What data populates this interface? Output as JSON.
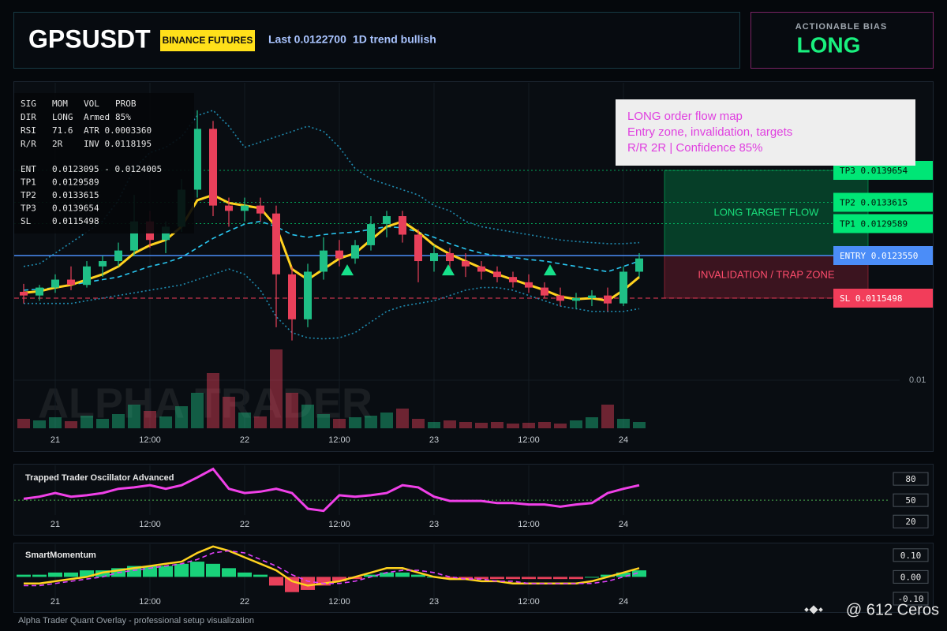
{
  "header": {
    "symbol": "GPSUSDT",
    "exchange": "BINANCE FUTURES",
    "last": "Last 0.0122700",
    "trend": "1D trend bullish"
  },
  "bias": {
    "label": "ACTIONABLE BIAS",
    "value": "LONG"
  },
  "info_panel": {
    "rows": [
      [
        "SIG",
        "MOM",
        "VOL",
        "PROB"
      ],
      [
        "DIR",
        "LONG",
        "Armed",
        "85%"
      ],
      [
        "RSI",
        "71.6",
        "ATR 0.0003360"
      ],
      [
        "R/R",
        "2R",
        "INV 0.0118195"
      ],
      [
        "ENT",
        "0.0123095 - 0.0124005"
      ],
      [
        "TP1",
        "0.0129589"
      ],
      [
        "TP2",
        "0.0133615"
      ],
      [
        "TP3",
        "0.0139654"
      ],
      [
        "SL",
        "0.0115498"
      ]
    ]
  },
  "annotation": {
    "lines": [
      "LONG order flow map",
      "Entry zone, invalidation, targets",
      "R/R 2R | Confidence 85%"
    ]
  },
  "watermark": "ALPHA TRADER",
  "footer": "Alpha Trader Quant Overlay - professional setup visualization",
  "credit": "@ 612 Ceros",
  "chart_data": [
    {
      "type": "candlestick",
      "x": [
        -4,
        -2,
        0,
        2,
        4,
        6,
        8,
        10,
        12,
        14,
        16,
        18,
        20,
        22,
        24,
        26,
        28,
        30,
        32,
        34,
        36,
        38,
        40,
        42,
        44,
        46,
        48,
        50,
        52,
        54,
        56,
        58,
        60,
        62,
        64,
        66,
        68,
        70,
        72,
        74
      ],
      "open": [
        0.01167,
        0.0116,
        0.01175,
        0.0119,
        0.0118,
        0.01215,
        0.01225,
        0.01245,
        0.013,
        0.01265,
        0.0129,
        0.0136,
        0.01475,
        0.0133,
        0.0132,
        0.0133,
        0.01315,
        0.012,
        0.01115,
        0.01205,
        0.01245,
        0.0123,
        0.01255,
        0.01295,
        0.0131,
        0.01275,
        0.01225,
        0.0124,
        0.01225,
        0.01215,
        0.01205,
        0.01195,
        0.01185,
        0.01175,
        0.0116,
        0.0115,
        0.01155,
        0.0116,
        0.01145,
        0.01205
      ],
      "high": [
        0.01182,
        0.0118,
        0.012,
        0.01215,
        0.01225,
        0.01235,
        0.0126,
        0.0135,
        0.0132,
        0.013,
        0.0138,
        0.0151,
        0.0149,
        0.01345,
        0.01345,
        0.01345,
        0.0133,
        0.01215,
        0.0122,
        0.0127,
        0.01265,
        0.01265,
        0.0131,
        0.0132,
        0.0132,
        0.01285,
        0.01255,
        0.0125,
        0.0124,
        0.01225,
        0.01215,
        0.01205,
        0.012,
        0.01185,
        0.01175,
        0.01165,
        0.0117,
        0.01175,
        0.01215,
        0.0124
      ],
      "low": [
        0.01145,
        0.0115,
        0.01165,
        0.0117,
        0.01175,
        0.01195,
        0.01215,
        0.01235,
        0.0125,
        0.0124,
        0.0128,
        0.01345,
        0.0131,
        0.0129,
        0.013,
        0.013,
        0.011,
        0.01075,
        0.011,
        0.0119,
        0.01215,
        0.0122,
        0.01245,
        0.0127,
        0.0126,
        0.01185,
        0.01205,
        0.0121,
        0.01195,
        0.0119,
        0.01185,
        0.01175,
        0.01165,
        0.01155,
        0.0114,
        0.01135,
        0.0114,
        0.0113,
        0.0114,
        0.01195
      ],
      "close": [
        0.0116,
        0.01175,
        0.0119,
        0.0118,
        0.01215,
        0.01225,
        0.01245,
        0.013,
        0.01265,
        0.0129,
        0.0136,
        0.01475,
        0.0133,
        0.0132,
        0.0133,
        0.01315,
        0.012,
        0.01115,
        0.01205,
        0.01245,
        0.0123,
        0.01255,
        0.01295,
        0.0131,
        0.01275,
        0.01225,
        0.0124,
        0.01225,
        0.01215,
        0.01205,
        0.01195,
        0.01185,
        0.01175,
        0.0116,
        0.0115,
        0.01155,
        0.0116,
        0.01145,
        0.01205,
        0.0123
      ],
      "volume": [
        12,
        10,
        14,
        9,
        16,
        12,
        18,
        30,
        22,
        15,
        28,
        45,
        70,
        40,
        20,
        15,
        100,
        45,
        30,
        18,
        12,
        14,
        16,
        20,
        25,
        12,
        8,
        10,
        8,
        7,
        8,
        6,
        7,
        8,
        6,
        10,
        14,
        30,
        12,
        8
      ],
      "up_color": "#1fbf86",
      "down_color": "#e8405a",
      "overlays": [
        {
          "color": "#1f8bb0",
          "dash": "dotted",
          "values": [
            0.01215,
            0.0122,
            0.0124,
            0.0126,
            0.0128,
            0.013,
            0.0134,
            0.014,
            0.0143,
            0.0144,
            0.0146,
            0.015,
            0.0151,
            0.0148,
            0.0144,
            0.0145,
            0.0146,
            0.0147,
            0.0148,
            0.0147,
            0.0144,
            0.014,
            0.0138,
            0.0137,
            0.0136,
            0.0135,
            0.0133,
            0.0132,
            0.013,
            0.0129,
            0.01285,
            0.0128,
            0.01275,
            0.0127,
            0.01265,
            0.01262,
            0.0126,
            0.01258,
            0.01258,
            0.0126
          ]
        },
        {
          "color": "#1f8bb0",
          "dash": "dotted",
          "values": [
            0.01145,
            0.01145,
            0.01145,
            0.01145,
            0.0115,
            0.01155,
            0.0116,
            0.01165,
            0.0117,
            0.01175,
            0.0118,
            0.0119,
            0.012,
            0.0121,
            0.012,
            0.0117,
            0.0112,
            0.0109,
            0.0108,
            0.01078,
            0.0108,
            0.0109,
            0.0111,
            0.0113,
            0.0114,
            0.01145,
            0.0115,
            0.0116,
            0.0117,
            0.01175,
            0.01175,
            0.0117,
            0.0116,
            0.0115,
            0.0114,
            0.01135,
            0.0113,
            0.0113,
            0.0113,
            0.01135
          ]
        },
        {
          "color": "#29c6f0",
          "dash": "dashed",
          "values": [
            0.0117,
            0.01172,
            0.01175,
            0.0118,
            0.01185,
            0.0119,
            0.01195,
            0.01205,
            0.01215,
            0.01222,
            0.01232,
            0.0125,
            0.01268,
            0.01282,
            0.01295,
            0.013,
            0.0129,
            0.01275,
            0.0127,
            0.01275,
            0.01278,
            0.0128,
            0.01285,
            0.0129,
            0.01288,
            0.0128,
            0.0127,
            0.01258,
            0.01248,
            0.0124,
            0.01235,
            0.01232,
            0.01228,
            0.01225,
            0.0122,
            0.01215,
            0.0121,
            0.01205,
            0.01215,
            0.01225
          ]
        },
        {
          "color": "#ffd21f",
          "dash": "solid",
          "values": [
            0.01165,
            0.01168,
            0.01175,
            0.0118,
            0.0119,
            0.012,
            0.01215,
            0.0124,
            0.01255,
            0.01265,
            0.0129,
            0.0134,
            0.0135,
            0.01335,
            0.0133,
            0.01325,
            0.0129,
            0.0121,
            0.0119,
            0.0121,
            0.0123,
            0.0124,
            0.01265,
            0.0129,
            0.013,
            0.0128,
            0.01255,
            0.01238,
            0.01225,
            0.01212,
            0.012,
            0.0119,
            0.0118,
            0.0117,
            0.01158,
            0.01153,
            0.01155,
            0.0115,
            0.0117,
            0.01195
          ]
        }
      ],
      "signals": {
        "color": "#16e08a",
        "x": [
          37,
          49.8,
          62.7
        ],
        "y": [
          0.01207,
          0.01207,
          0.01207
        ]
      },
      "levels": [
        {
          "label": "TP3 0.0139654",
          "value": 0.0139654,
          "color": "#00e676",
          "text_color": "#04140a",
          "style": "dotted"
        },
        {
          "label": "TP2 0.0133615",
          "value": 0.0133615,
          "color": "#00e676",
          "text_color": "#04140a",
          "style": "dotted"
        },
        {
          "label": "TP1 0.0129589",
          "value": 0.0129589,
          "color": "#00e676",
          "text_color": "#04140a",
          "style": "dotted"
        },
        {
          "label": "ENTRY 0.0123550",
          "value": 0.012355,
          "color": "#4b8df8",
          "text_color": "#ffffff",
          "style": "solid"
        },
        {
          "label": "SL 0.0115498",
          "value": 0.0115498,
          "color": "#f23d5a",
          "text_color": "#ffffff",
          "style": "dashed"
        }
      ],
      "zones": [
        {
          "label": "LONG TARGET FLOW",
          "from": 0.012355,
          "to": 0.0139654,
          "color": "#00c060",
          "text_color": "#19e07c"
        },
        {
          "label": "INVALIDATION / TRAP ZONE",
          "from": 0.0115498,
          "to": 0.012355,
          "color": "#c0283f",
          "text_color": "#ff4d6d"
        }
      ],
      "xlim": [
        -5.2,
        107
      ],
      "xticks": [
        {
          "value": 0,
          "label": "21"
        },
        {
          "value": 12,
          "label": "12:00"
        },
        {
          "value": 24,
          "label": "22"
        },
        {
          "value": 36,
          "label": "12:00"
        },
        {
          "value": 48,
          "label": "23"
        },
        {
          "value": 60,
          "label": "12:00"
        },
        {
          "value": 72,
          "label": "24"
        }
      ],
      "ylim": [
        0.00909,
        0.01562
      ],
      "yticks": [
        0.01
      ],
      "grid": true
    },
    {
      "type": "line",
      "title": "Trapped Trader Oscillator Advanced",
      "x": [
        -4,
        -2,
        0,
        2,
        4,
        6,
        8,
        10,
        12,
        14,
        16,
        18,
        20,
        22,
        24,
        26,
        28,
        30,
        32,
        34,
        36,
        38,
        40,
        42,
        44,
        46,
        48,
        50,
        52,
        54,
        56,
        58,
        60,
        62,
        64,
        66,
        68,
        70,
        72,
        74
      ],
      "series": [
        {
          "color": "#f040e8",
          "dash": "solid",
          "values": [
            52,
            55,
            60,
            55,
            57,
            60,
            66,
            68,
            71,
            66,
            71,
            82,
            94,
            66,
            60,
            62,
            66,
            60,
            38,
            35,
            57,
            55,
            57,
            60,
            71,
            68,
            55,
            49,
            49,
            49,
            46,
            46,
            44,
            44,
            41,
            44,
            46,
            60,
            66,
            71
          ]
        }
      ],
      "guides": [
        {
          "value": 50,
          "color": "#4caf50"
        }
      ],
      "xlim": [
        -5.2,
        107
      ],
      "xticks": [
        {
          "value": 0,
          "label": "21"
        },
        {
          "value": 12,
          "label": "12:00"
        },
        {
          "value": 24,
          "label": "22"
        },
        {
          "value": 36,
          "label": "12:00"
        },
        {
          "value": 48,
          "label": "23"
        },
        {
          "value": 60,
          "label": "12:00"
        },
        {
          "value": 72,
          "label": "24"
        }
      ],
      "ylim": [
        18,
        99
      ],
      "yticks": [
        20,
        50,
        80
      ]
    },
    {
      "type": "combo",
      "title": "SmartMomentum",
      "x": [
        -4,
        -2,
        0,
        2,
        4,
        6,
        8,
        10,
        12,
        14,
        16,
        18,
        20,
        22,
        24,
        26,
        28,
        30,
        32,
        34,
        36,
        38,
        40,
        42,
        44,
        46,
        48,
        50,
        52,
        54,
        56,
        58,
        60,
        62,
        64,
        66,
        68,
        70,
        72,
        74
      ],
      "series": [
        {
          "kind": "bar",
          "color": "#19d27a",
          "negative_color": "#e8405a",
          "values": [
            0.01,
            0.01,
            0.02,
            0.02,
            0.03,
            0.03,
            0.04,
            0.05,
            0.05,
            0.05,
            0.06,
            0.07,
            0.06,
            0.04,
            0.02,
            0.01,
            -0.04,
            -0.07,
            -0.06,
            -0.04,
            -0.02,
            -0.01,
            0.01,
            0.02,
            0.02,
            0.01,
            0,
            -0.01,
            -0.01,
            -0.01,
            -0.01,
            -0.01,
            -0.01,
            -0.01,
            -0.01,
            -0.01,
            0,
            0.01,
            0.02,
            0.03
          ]
        },
        {
          "kind": "line",
          "color": "#ffd21f",
          "dash": "solid",
          "values": [
            -0.03,
            -0.03,
            -0.02,
            -0.01,
            0,
            0.02,
            0.03,
            0.04,
            0.05,
            0.06,
            0.07,
            0.11,
            0.14,
            0.12,
            0.09,
            0.06,
            0.03,
            -0.02,
            -0.04,
            -0.03,
            -0.02,
            0,
            0.02,
            0.04,
            0.04,
            0.02,
            0,
            -0.01,
            -0.01,
            -0.02,
            -0.02,
            -0.03,
            -0.03,
            -0.03,
            -0.03,
            -0.03,
            -0.02,
            0,
            0.02,
            0.04
          ]
        },
        {
          "kind": "line",
          "color": "#e040fb",
          "dash": "dashed",
          "values": [
            -0.04,
            -0.04,
            -0.03,
            -0.02,
            -0.01,
            0,
            0.02,
            0.03,
            0.04,
            0.05,
            0.06,
            0.08,
            0.11,
            0.12,
            0.11,
            0.08,
            0.05,
            0.01,
            -0.02,
            -0.03,
            -0.03,
            -0.02,
            0,
            0.02,
            0.03,
            0.03,
            0.02,
            0,
            -0.01,
            -0.01,
            -0.02,
            -0.02,
            -0.03,
            -0.03,
            -0.03,
            -0.03,
            -0.03,
            -0.02,
            0,
            0.02
          ]
        }
      ],
      "xlim": [
        -5.2,
        107
      ],
      "xticks": [
        {
          "value": 0,
          "label": "21"
        },
        {
          "value": 12,
          "label": "12:00"
        },
        {
          "value": 24,
          "label": "22"
        },
        {
          "value": 36,
          "label": "12:00"
        },
        {
          "value": 48,
          "label": "23"
        },
        {
          "value": 60,
          "label": "12:00"
        },
        {
          "value": 72,
          "label": "24"
        }
      ],
      "ylim": [
        -0.14,
        0.15
      ],
      "yticks": [
        {
          "value": 0.1,
          "label": "0.10"
        },
        {
          "value": 0,
          "label": "0.00"
        },
        {
          "value": -0.1,
          "label": "-0.10"
        }
      ]
    }
  ]
}
